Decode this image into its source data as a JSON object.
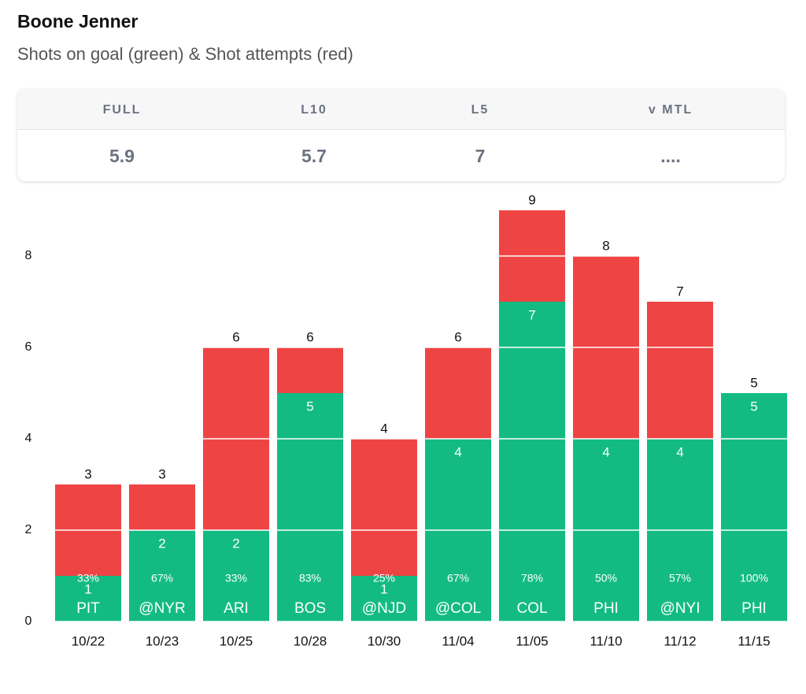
{
  "title": "Boone Jenner",
  "stats": [
    {
      "label": "FULL",
      "value": "5.9"
    },
    {
      "label": "L10",
      "value": "5.7"
    },
    {
      "label": "L5",
      "value": "7"
    },
    {
      "label": "v MTL",
      "value": "...."
    }
  ],
  "chart_data": {
    "type": "bar",
    "subtitle": "Shots on goal (green) & Shot attempts (red)",
    "categories": [
      "10/22",
      "10/23",
      "10/25",
      "10/28",
      "10/30",
      "11/04",
      "11/05",
      "11/10",
      "11/12",
      "11/15"
    ],
    "opponents": [
      "PIT",
      "@NYR",
      "ARI",
      "BOS",
      "@NJD",
      "@COL",
      "COL",
      "PHI",
      "@NYI",
      "PHI"
    ],
    "series": [
      {
        "color": "#ef4444",
        "values": [
          3,
          3,
          6,
          6,
          4,
          6,
          9,
          8,
          7,
          5
        ]
      },
      {
        "color": "#13bb82",
        "values": [
          1,
          2,
          2,
          5,
          1,
          4,
          7,
          4,
          4,
          5
        ]
      }
    ],
    "percent": {
      "values": [
        33,
        67,
        33,
        83,
        25,
        67,
        78,
        50,
        57,
        100
      ],
      "value_labels": [
        "33%",
        "67%",
        "33%",
        "83%",
        "25%",
        "67%",
        "78%",
        "50%",
        "57%",
        "100%"
      ]
    },
    "ylim": [
      0,
      9.5
    ],
    "yticks": [
      0,
      2,
      4,
      6,
      8
    ],
    "grid": true
  }
}
